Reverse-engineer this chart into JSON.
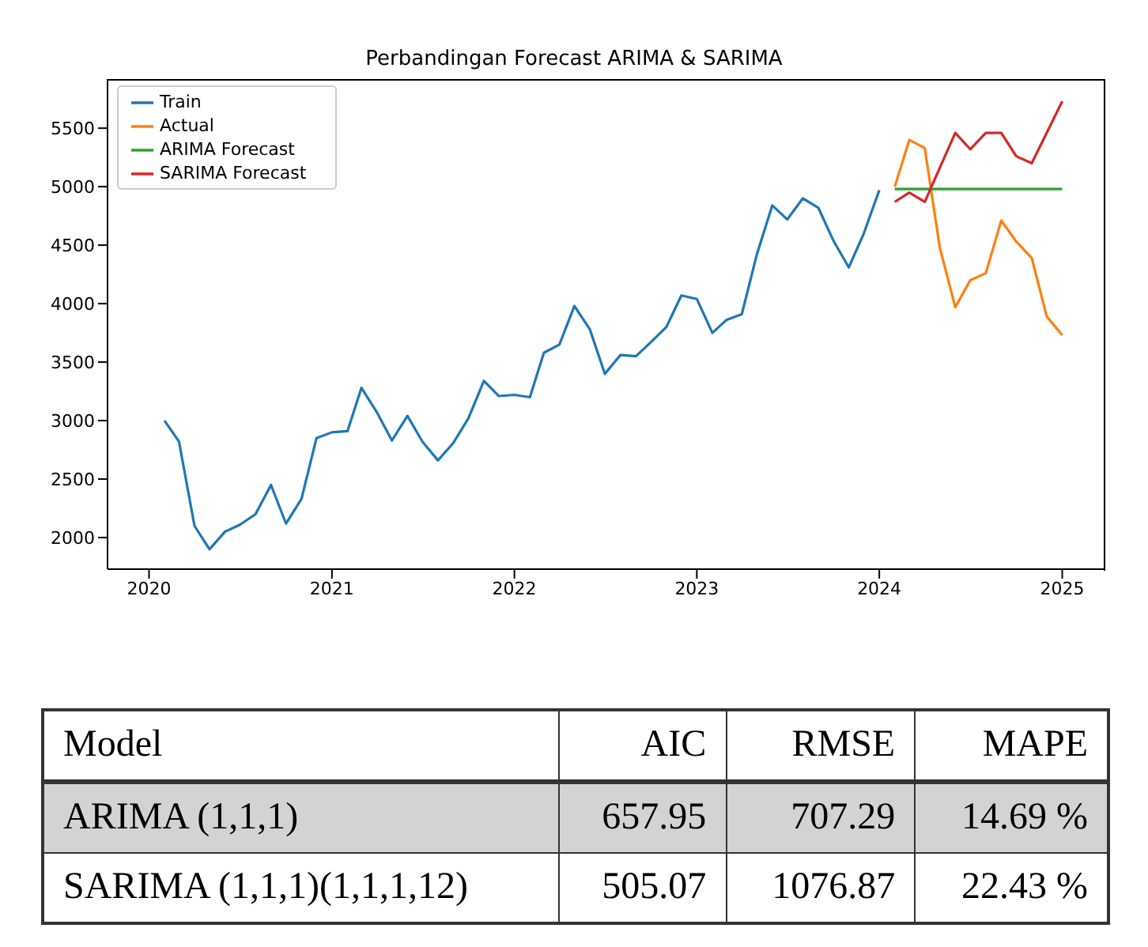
{
  "chart_data": [
    {
      "type": "line",
      "title": "Perbandingan Forecast ARIMA & SARIMA",
      "series": [
        {
          "name": "Train",
          "color": "#1f77b4",
          "x": [
            "2020-02",
            "2020-03",
            "2020-04",
            "2020-05",
            "2020-06",
            "2020-07",
            "2020-08",
            "2020-09",
            "2020-10",
            "2020-11",
            "2020-12",
            "2021-01",
            "2021-02",
            "2021-03",
            "2021-04",
            "2021-05",
            "2021-06",
            "2021-07",
            "2021-08",
            "2021-09",
            "2021-10",
            "2021-11",
            "2021-12",
            "2022-01",
            "2022-02",
            "2022-03",
            "2022-04",
            "2022-05",
            "2022-06",
            "2022-07",
            "2022-08",
            "2022-09",
            "2022-10",
            "2022-11",
            "2022-12",
            "2023-01",
            "2023-02",
            "2023-03",
            "2023-04",
            "2023-05",
            "2023-06",
            "2023-07",
            "2023-08",
            "2023-09",
            "2023-10",
            "2023-11",
            "2023-12",
            "2024-01"
          ],
          "values": [
            3000,
            2820,
            2100,
            1900,
            2050,
            2110,
            2200,
            2450,
            2120,
            2330,
            2850,
            2900,
            2910,
            3280,
            3070,
            2830,
            3040,
            2820,
            2660,
            2810,
            3020,
            3340,
            3210,
            3220,
            3200,
            3580,
            3650,
            3980,
            3780,
            3400,
            3560,
            3550,
            3670,
            3800,
            4070,
            4040,
            3750,
            3860,
            3910,
            4420,
            4840,
            4720,
            4900,
            4820,
            4540,
            4310,
            4600,
            4970
          ]
        },
        {
          "name": "Actual",
          "color": "#ff7f0e",
          "x": [
            "2024-02",
            "2024-03",
            "2024-04",
            "2024-05",
            "2024-06",
            "2024-07",
            "2024-08",
            "2024-09",
            "2024-10",
            "2024-11",
            "2024-12",
            "2025-01"
          ],
          "values": [
            5000,
            5400,
            5330,
            4480,
            3970,
            4200,
            4260,
            4710,
            4530,
            4390,
            3890,
            3730
          ]
        },
        {
          "name": "ARIMA Forecast",
          "color": "#2ca02c",
          "x": [
            "2024-02",
            "2024-03",
            "2024-04",
            "2024-05",
            "2024-06",
            "2024-07",
            "2024-08",
            "2024-09",
            "2024-10",
            "2024-11",
            "2024-12",
            "2025-01"
          ],
          "values": [
            4980,
            4980,
            4980,
            4980,
            4980,
            4980,
            4980,
            4980,
            4980,
            4980,
            4980,
            4980
          ]
        },
        {
          "name": "SARIMA Forecast",
          "color": "#d62728",
          "x": [
            "2024-02",
            "2024-03",
            "2024-04",
            "2024-05",
            "2024-06",
            "2024-07",
            "2024-08",
            "2024-09",
            "2024-10",
            "2024-11",
            "2024-12",
            "2025-01"
          ],
          "values": [
            4870,
            4950,
            4870,
            5160,
            5460,
            5320,
            5460,
            5460,
            5260,
            5200,
            5460,
            5730
          ]
        }
      ],
      "xlim": [
        "2019-10-10",
        "2025-03-25"
      ],
      "xticks": [
        {
          "value": "2020-01-01",
          "label": "2020"
        },
        {
          "value": "2021-01-01",
          "label": "2021"
        },
        {
          "value": "2022-01-01",
          "label": "2022"
        },
        {
          "value": "2023-01-01",
          "label": "2023"
        },
        {
          "value": "2024-01-01",
          "label": "2024"
        },
        {
          "value": "2025-01-01",
          "label": "2025"
        }
      ],
      "ylim": [
        1730,
        5920
      ],
      "yticks": [
        2000,
        2500,
        3000,
        3500,
        4000,
        4500,
        5000,
        5500
      ],
      "legend": "top left",
      "grid": false,
      "marker": "none",
      "line_style": "solid"
    },
    {
      "type": "other",
      "categories": [
        "Model",
        "AIC",
        "RMSE",
        "MAPE"
      ],
      "cell_labels": [
        [
          "ARIMA (1,1,1)",
          "657.95",
          "707.29",
          "14.69 %"
        ],
        [
          "SARIMA (1,1,1)(1,1,1,12)",
          "505.07",
          "1076.87",
          "22.43 %"
        ]
      ]
    }
  ]
}
